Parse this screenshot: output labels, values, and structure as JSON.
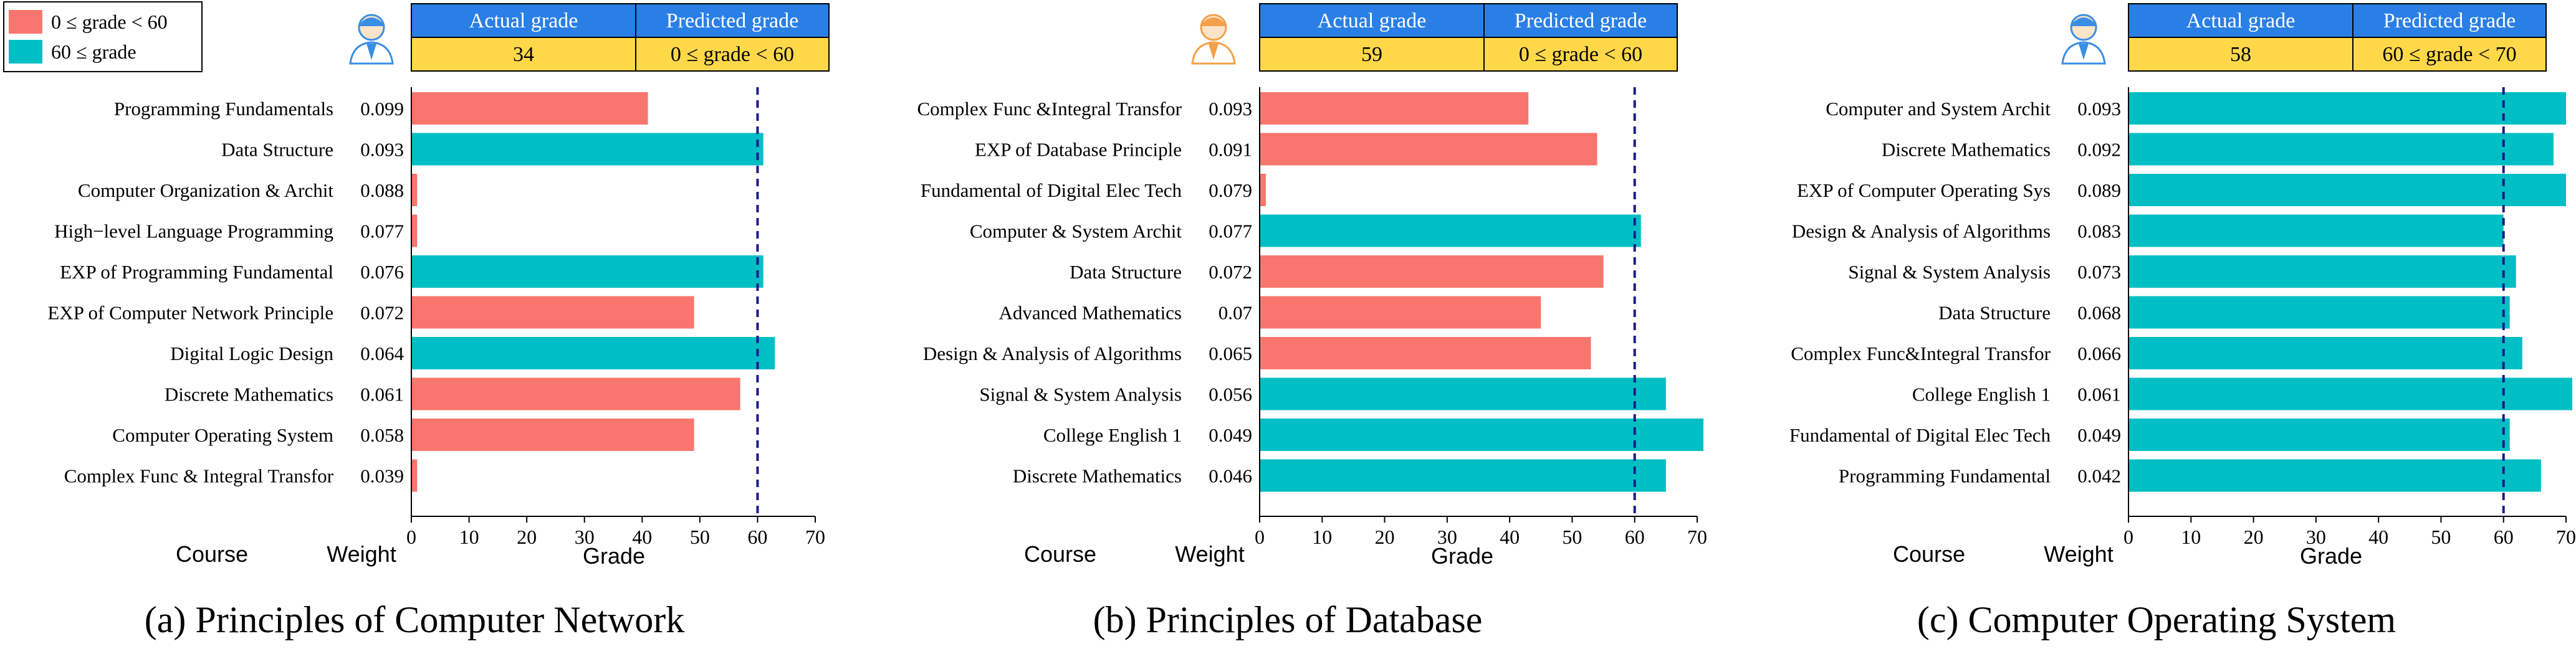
{
  "legend": {
    "entries": [
      {
        "label": "0 ≤ grade < 60",
        "color": "#F8766D"
      },
      {
        "label": "60 ≤ grade",
        "color": "#00BFC4"
      }
    ]
  },
  "colors": {
    "fail": "#F8766D",
    "pass": "#00BFC4",
    "header_blue": "#2A7FE6",
    "header_yellow": "#FFD84A",
    "threshold_line": "#1A1A8C"
  },
  "icons": [
    "student-male-icon",
    "student-female-icon",
    "student-male-icon"
  ],
  "chart_data": [
    {
      "type": "bar",
      "orientation": "horizontal",
      "caption": "(a) Principles of Computer Network",
      "header": {
        "actual_label": "Actual grade",
        "predicted_label": "Predicted grade",
        "actual_value": "34",
        "predicted_value": "0 ≤ grade < 60"
      },
      "column_labels": {
        "course": "Course",
        "weight": "Weight"
      },
      "xlabel": "Grade",
      "xlim": [
        0,
        70
      ],
      "xticks": [
        0,
        10,
        20,
        30,
        40,
        50,
        60,
        70
      ],
      "threshold": 60,
      "categories": [
        "Programming Fundamentals",
        "Data Structure",
        "Computer Organization & Archit",
        "High−level Language Programming",
        "EXP of Programming Fundamental",
        "EXP of Computer Network Principle",
        "Digital Logic Design",
        "Discrete Mathematics",
        "Computer Operating System",
        "Complex Func & Integral Transfor"
      ],
      "weights": [
        "0.099",
        "0.093",
        "0.088",
        "0.077",
        "0.076",
        "0.072",
        "0.064",
        "0.061",
        "0.058",
        "0.039"
      ],
      "values": [
        41,
        61,
        1,
        1,
        61,
        49,
        63,
        57,
        49,
        1
      ]
    },
    {
      "type": "bar",
      "orientation": "horizontal",
      "caption": "(b) Principles of Database",
      "header": {
        "actual_label": "Actual grade",
        "predicted_label": "Predicted grade",
        "actual_value": "59",
        "predicted_value": "0 ≤ grade < 60"
      },
      "column_labels": {
        "course": "Course",
        "weight": "Weight"
      },
      "xlabel": "Grade",
      "xlim": [
        0,
        70
      ],
      "xticks": [
        0,
        10,
        20,
        30,
        40,
        50,
        60,
        70
      ],
      "threshold": 60,
      "categories": [
        "Complex Func &Integral Transfor",
        "EXP of Database Principle",
        "Fundamental of Digital Elec Tech",
        "Computer & System Archit",
        "Data Structure",
        "Advanced Mathematics",
        "Design & Analysis of Algorithms",
        "Signal & System Analysis",
        "College English 1",
        "Discrete Mathematics"
      ],
      "weights": [
        "0.093",
        "0.091",
        "0.079",
        "0.077",
        "0.072",
        "0.07",
        "0.065",
        "0.056",
        "0.049",
        "0.046"
      ],
      "values": [
        43,
        54,
        1,
        61,
        55,
        45,
        53,
        65,
        71,
        65
      ]
    },
    {
      "type": "bar",
      "orientation": "horizontal",
      "caption": "(c) Computer Operating System",
      "header": {
        "actual_label": "Actual grade",
        "predicted_label": "Predicted grade",
        "actual_value": "58",
        "predicted_value": "60 ≤ grade < 70"
      },
      "column_labels": {
        "course": "Course",
        "weight": "Weight"
      },
      "xlabel": "Grade",
      "xlim": [
        0,
        70
      ],
      "xticks": [
        0,
        10,
        20,
        30,
        40,
        50,
        60,
        70
      ],
      "threshold": 60,
      "categories": [
        "Computer and System Archit",
        "Discrete Mathematics",
        "EXP of Computer Operating Sys",
        "Design & Analysis of Algorithms",
        "Signal & System Analysis",
        "Data Structure",
        "Complex Func&Integral Transfor",
        "College English 1",
        "Fundamental of Digital Elec Tech",
        "Programming Fundamental"
      ],
      "weights": [
        "0.093",
        "0.092",
        "0.089",
        "0.083",
        "0.073",
        "0.068",
        "0.066",
        "0.061",
        "0.049",
        "0.042"
      ],
      "values": [
        70,
        68,
        70,
        60,
        62,
        61,
        63,
        71,
        61,
        66
      ]
    }
  ]
}
